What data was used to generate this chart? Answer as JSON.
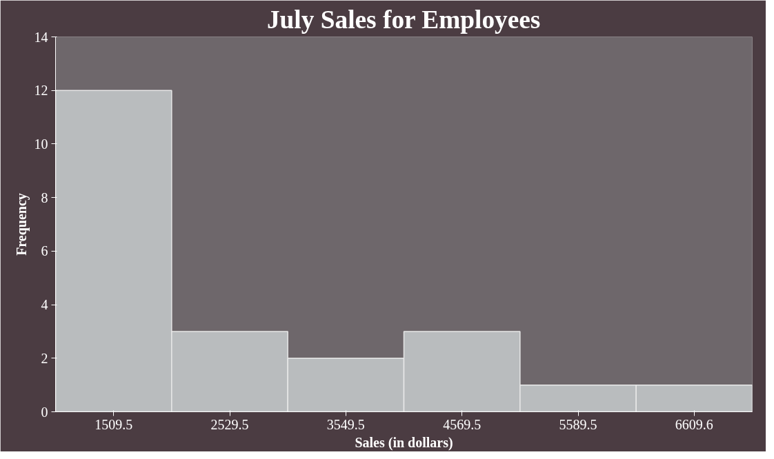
{
  "chart_data": {
    "type": "bar",
    "title": "July Sales for Employees",
    "xlabel": "Sales (in dollars)",
    "ylabel": "Frequency",
    "categories": [
      "1509.5",
      "2529.5",
      "3549.5",
      "4569.5",
      "5589.5",
      "6609.6"
    ],
    "values": [
      12,
      3,
      2,
      3,
      1,
      1
    ],
    "color": "#b9bcbe",
    "ylim": [
      0,
      14
    ],
    "yticks": [
      0,
      2,
      4,
      6,
      8,
      10,
      12,
      14
    ],
    "grid": false
  }
}
